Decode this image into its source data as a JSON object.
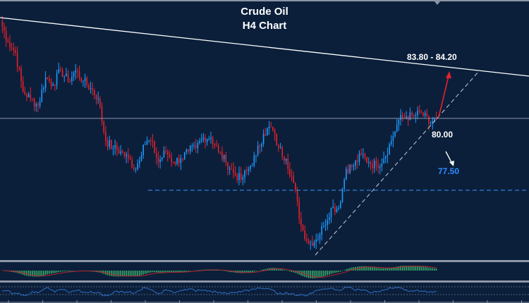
{
  "chart_data": {
    "type": "candlestick",
    "title": "Crude Oil",
    "subtitle": "H4 Chart",
    "xlabel": "",
    "ylabel": "",
    "ylim": [
      75.2,
      83.8
    ],
    "grid": false,
    "closes": [
      83.38,
      82.65,
      82.28,
      80.93,
      80.69,
      80.44,
      81.42,
      81.18,
      81.67,
      81.3,
      81.67,
      81.3,
      81.05,
      80.69,
      79.22,
      78.97,
      78.85,
      78.6,
      78.24,
      79.09,
      79.22,
      78.48,
      78.85,
      78.48,
      78.6,
      78.85,
      78.97,
      79.34,
      79.34,
      78.85,
      78.48,
      78.11,
      77.87,
      78.24,
      78.73,
      79.46,
      79.71,
      78.97,
      78.6,
      77.75,
      76.27,
      75.66,
      75.78,
      76.27,
      76.89,
      76.89,
      78.24,
      78.36,
      78.73,
      78.48,
      78.36,
      78.6,
      79.22,
      79.95,
      80.07,
      80.07,
      80.2,
      79.83,
      79.95
    ],
    "levels": {
      "horizontal_resistance": 80.0,
      "horizontal_support": 77.5
    },
    "annotations": {
      "target_up": "83.80 - 84.20",
      "pivot": "80.00",
      "target_down": "77.50"
    },
    "indicators": [
      "MACD",
      "RSI"
    ]
  },
  "colors": {
    "background": "#0b1f3b",
    "bull_candle": "#1e9bff",
    "bear_candle": "#e8202a",
    "support_dashed": "#2f7fd6",
    "target_down_label": "#2e8cff",
    "macd_histogram": "#3aa868",
    "macd_signal": "#b8252c",
    "rsi_line": "#2f6fc4"
  }
}
